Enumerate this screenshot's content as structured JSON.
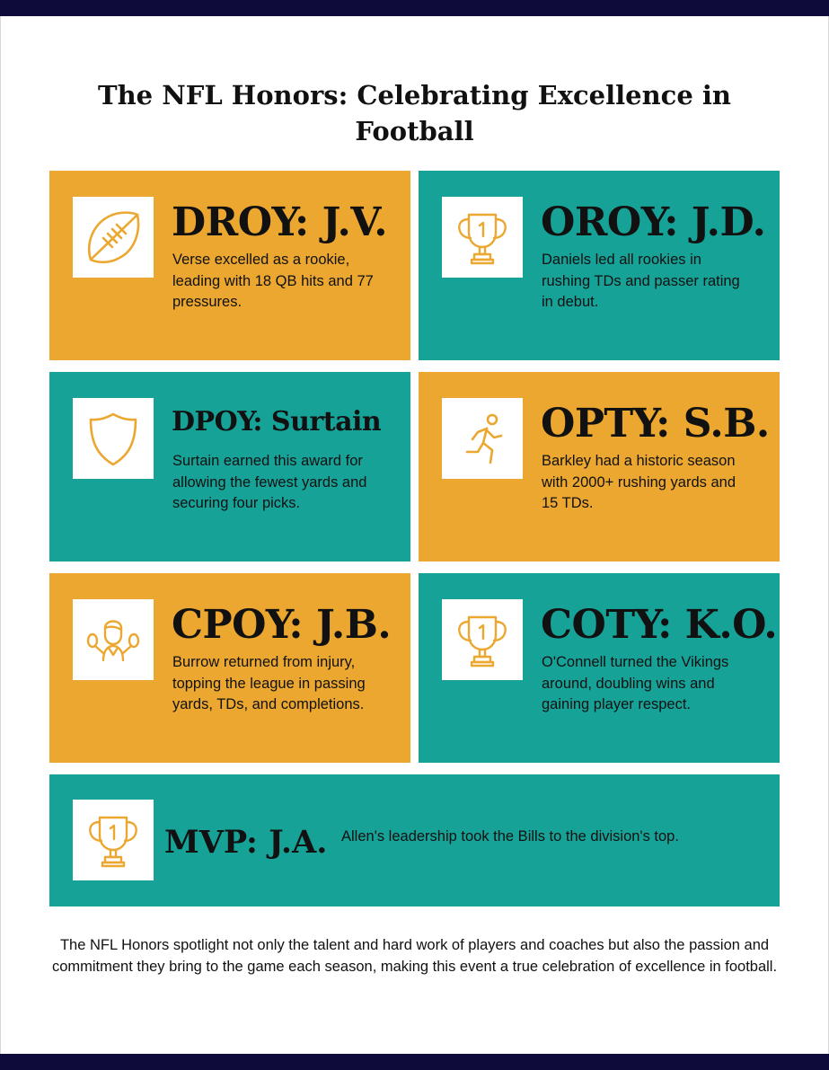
{
  "title": "The NFL Honors: Celebrating Excellence in Football",
  "colors": {
    "orange": "#eba72f",
    "teal": "#17a298",
    "navy": "#0e0b3a"
  },
  "awards": [
    {
      "title": "DROY: J.V.",
      "text": "Verse excelled as a rookie, leading with 18 QB hits and 77 pressures.",
      "icon": "football-icon",
      "color": "orange"
    },
    {
      "title": "OROY: J.D.",
      "text": "Daniels led all rookies in rushing TDs and passer rating in debut.",
      "icon": "trophy-icon",
      "color": "teal"
    },
    {
      "title": "DPOY: Surtain",
      "text": "Surtain earned this award for allowing the fewest yards and securing four picks.",
      "icon": "shield-icon",
      "color": "teal"
    },
    {
      "title": "OPTY: S.B.",
      "text": "Barkley had a historic season with 2000+ rushing yards and 15 TDs.",
      "icon": "running-person-icon",
      "color": "orange"
    },
    {
      "title": "CPOY: J.B.",
      "text": "Burrow returned from injury, topping the league in passing yards, TDs, and completions.",
      "icon": "cheerleader-icon",
      "color": "orange"
    },
    {
      "title": "COTY: K.O.",
      "text": "O'Connell turned the Vikings around, doubling wins and gaining player respect.",
      "icon": "trophy-icon",
      "color": "teal"
    }
  ],
  "mvp": {
    "title": "MVP: J.A.",
    "text": "Allen's leadership took the Bills to the division's top.",
    "icon": "trophy-icon"
  },
  "footer": "The NFL Honors spotlight not only the talent and hard work of players and coaches but also the passion and commitment they bring to the game each season, making this event a true celebration of excellence in football."
}
